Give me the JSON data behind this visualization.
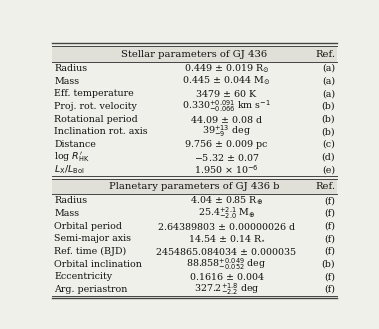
{
  "title1": "Stellar parameters of GJ 436",
  "title2": "Planetary parameters of GJ 436 b",
  "ref_header": "Ref.",
  "stellar_rows": [
    [
      "Radius",
      "0.449 $\\pm$ 0.019 R$_{\\odot}$",
      "(a)"
    ],
    [
      "Mass",
      "0.445 $\\pm$ 0.044 M$_{\\odot}$",
      "(a)"
    ],
    [
      "Eff. temperature",
      "3479 $\\pm$ 60 K",
      "(a)"
    ],
    [
      "Proj. rot. velocity",
      "0.330$^{+0.091}_{-0.066}$ km s$^{-1}$",
      "(b)"
    ],
    [
      "Rotational period",
      "44.09 $\\pm$ 0.08 d",
      "(b)"
    ],
    [
      "Inclination rot. axis",
      "39$^{+13}_{-9}$ deg",
      "(b)"
    ],
    [
      "Distance",
      "9.756 $\\pm$ 0.009 pc",
      "(c)"
    ],
    [
      "log $R^{\\prime}_{\\mathrm{HK}}$",
      "$-$5.32 $\\pm$ 0.07",
      "(d)"
    ],
    [
      "$L_{\\mathrm{X}}/L_{\\mathrm{Bol}}$",
      "1.950 $\\times$ 10$^{-6}$",
      "(e)"
    ]
  ],
  "planetary_rows": [
    [
      "Radius",
      "4.04 $\\pm$ 0.85 R$_{\\oplus}$",
      "(f)"
    ],
    [
      "Mass",
      "25.4$^{+2.1}_{-2.0}$ M$_{\\oplus}$",
      "(f)"
    ],
    [
      "Orbital period",
      "2.64389803 $\\pm$ 0.00000026 d",
      "(f)"
    ],
    [
      "Semi-major axis",
      "14.54 $\\pm$ 0.14 R$_{\\star}$",
      "(f)"
    ],
    [
      "Ref. time (BJD)",
      "2454865.084034 $\\pm$ 0.000035",
      "(f)"
    ],
    [
      "Orbital inclination",
      "88.858$^{+0.049}_{-0.052}$ deg",
      "(b)"
    ],
    [
      "Eccentricity",
      "0.1616 $\\pm$ 0.004",
      "(f)"
    ],
    [
      "Arg. periastron",
      "327.2$^{+1.8}_{-2.2}$ deg",
      "(f)"
    ]
  ],
  "line_color": "#444444",
  "text_color": "#111111",
  "header_bg": "#e0e0d8",
  "fig_bg": "#f0f0ea"
}
